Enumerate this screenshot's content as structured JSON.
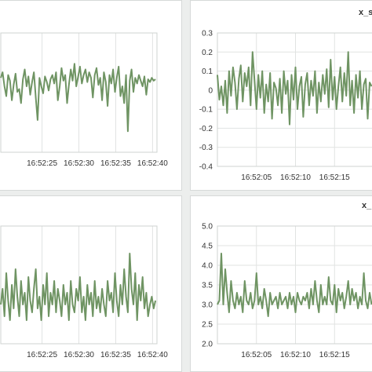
{
  "accent_color": "#6f9463",
  "panels": [
    {
      "title": "",
      "plot": {
        "left": 8,
        "top": 41,
        "width": 199,
        "height": 152
      }
    },
    {
      "title": "x_s",
      "plot": {
        "left": 34,
        "top": 41,
        "width": 199,
        "height": 170
      }
    },
    {
      "title": "",
      "plot": {
        "left": 8,
        "top": 38,
        "width": 199,
        "height": 150
      }
    },
    {
      "title": "x_",
      "plot": {
        "left": 34,
        "top": 38,
        "width": 199,
        "height": 150
      }
    }
  ],
  "chart_data": [
    {
      "type": "line",
      "x_ticks": [
        "16:52:25",
        "16:52:30",
        "16:52:35",
        "16:52:40"
      ],
      "x_tick_positions": [
        25,
        30,
        35,
        40
      ],
      "xlim": [
        19.4,
        40.6
      ],
      "ylim": [
        -0.45,
        0.4
      ],
      "y_ticks": [],
      "grid": true,
      "series": [
        {
          "x_start": 19.4,
          "x_step": 0.25,
          "values": [
            0.08,
            0.12,
            0.02,
            -0.05,
            0.1,
            0.06,
            -0.08,
            0.03,
            0.11,
            -0.02,
            0.0,
            -0.1,
            0.07,
            0.14,
            0.02,
            0.09,
            -0.04,
            0.05,
            0.12,
            -0.06,
            -0.22,
            0.08,
            0.02,
            -0.03,
            0.09,
            0.05,
            -0.01,
            0.07,
            0.1,
            0.04,
            0.12,
            -0.08,
            0.02,
            0.15,
            0.06,
            0.1,
            -0.1,
            0.03,
            0.14,
            0.06,
            0.18,
            0.02,
            0.09,
            0.16,
            0.04,
            0.1,
            0.14,
            0.05,
            0.12,
            0.08,
            -0.06,
            0.1,
            0.15,
            0.03,
            0.08,
            -0.08,
            0.12,
            0.05,
            -0.12,
            0.1,
            0.04,
            0.14,
            -0.02,
            0.08,
            0.16,
            -0.05,
            0.02,
            -0.1,
            0.1,
            -0.3,
            0.06,
            0.14,
            -0.02,
            0.08,
            0.04,
            0.1,
            0.06,
            0.02,
            0.09,
            -0.04,
            0.07,
            0.05,
            0.08,
            0.06,
            0.07
          ]
        }
      ]
    },
    {
      "type": "line",
      "x_ticks": [
        "16:52:05",
        "16:52:10",
        "16:52:15"
      ],
      "x_tick_positions": [
        5,
        10,
        15
      ],
      "xlim": [
        0.0,
        20.0
      ],
      "ylim": [
        -0.4,
        0.3
      ],
      "y_ticks": [
        -0.4,
        -0.3,
        -0.2,
        -0.1,
        0,
        0.1,
        0.2,
        0.3
      ],
      "y_tick_labels": [
        "-0.4",
        "-0.3",
        "-0.2",
        "-0.1",
        "0",
        "0.1",
        "0.2",
        "0.3"
      ],
      "grid": true,
      "series": [
        {
          "x_start": 0.0,
          "x_step": 0.25,
          "values": [
            0.08,
            -0.05,
            0.02,
            -0.08,
            0.05,
            -0.12,
            0.1,
            -0.03,
            0.12,
            0.04,
            -0.1,
            0.06,
            0.13,
            -0.06,
            0.09,
            0.02,
            0.12,
            -0.08,
            0.2,
            0.05,
            -0.1,
            0.08,
            -0.04,
            0.1,
            -0.12,
            0.03,
            -0.06,
            0.09,
            -0.15,
            0.04,
            0.01,
            -0.08,
            0.06,
            -0.12,
            0.1,
            -0.02,
            0.05,
            -0.18,
            0.08,
            -0.05,
            0.12,
            -0.1,
            0.02,
            0.07,
            -0.14,
            0.03,
            0.09,
            -0.08,
            0.05,
            -0.03,
            0.1,
            -0.12,
            0.04,
            -0.06,
            0.08,
            -0.02,
            0.11,
            -0.09,
            0.16,
            -0.05,
            0.07,
            -0.1,
            0.02,
            0.12,
            -0.06,
            0.09,
            -0.03,
            0.2,
            -0.08,
            0.05,
            -0.12,
            0.08,
            -0.04,
            0.1,
            -0.1,
            0.03,
            0.06,
            -0.15,
            0.04,
            0.02
          ]
        }
      ]
    },
    {
      "type": "line",
      "x_ticks": [
        "16:52:25",
        "16:52:30",
        "16:52:35",
        "16:52:40"
      ],
      "x_tick_positions": [
        25,
        30,
        35,
        40
      ],
      "xlim": [
        19.4,
        40.6
      ],
      "ylim": [
        2.0,
        5.0
      ],
      "y_ticks": [],
      "grid": true,
      "series": [
        {
          "x_start": 19.4,
          "x_step": 0.25,
          "values": [
            3.0,
            3.4,
            2.7,
            3.8,
            3.1,
            2.6,
            3.5,
            2.9,
            3.9,
            3.2,
            2.7,
            3.6,
            3.0,
            3.3,
            2.6,
            3.7,
            3.1,
            2.8,
            3.4,
            3.9,
            2.9,
            3.2,
            2.6,
            3.5,
            3.0,
            3.8,
            2.7,
            3.3,
            3.0,
            3.6,
            2.8,
            3.4,
            3.1,
            2.7,
            3.5,
            3.0,
            3.3,
            2.6,
            3.6,
            3.0,
            2.8,
            3.4,
            3.1,
            3.7,
            2.8,
            3.2,
            2.6,
            3.5,
            3.0,
            3.3,
            2.7,
            3.6,
            2.9,
            3.2,
            2.8,
            3.4,
            3.0,
            2.7,
            3.6,
            3.1,
            3.3,
            2.8,
            3.8,
            3.1,
            2.7,
            3.5,
            3.0,
            3.9,
            3.2,
            2.8,
            4.3,
            3.4,
            3.0,
            3.8,
            2.6,
            3.5,
            3.1,
            3.7,
            2.9,
            3.3,
            2.7,
            3.0,
            3.2,
            2.9,
            3.1
          ]
        }
      ]
    },
    {
      "type": "line",
      "x_ticks": [
        "16:52:05",
        "16:52:10",
        "16:52:15"
      ],
      "x_tick_positions": [
        5,
        10,
        15
      ],
      "xlim": [
        0.0,
        20.0
      ],
      "ylim": [
        2.0,
        5.0
      ],
      "y_ticks": [
        2.0,
        2.5,
        3.0,
        3.5,
        4.0,
        4.5,
        5.0
      ],
      "y_tick_labels": [
        "2.0",
        "2.5",
        "3.0",
        "3.5",
        "4.0",
        "4.5",
        "5.0"
      ],
      "grid": true,
      "series": [
        {
          "x_start": 0.0,
          "x_step": 0.25,
          "values": [
            3.0,
            3.1,
            4.3,
            3.0,
            3.9,
            3.3,
            2.8,
            3.6,
            3.1,
            2.9,
            3.3,
            3.0,
            3.2,
            2.8,
            3.6,
            3.1,
            3.0,
            3.3,
            2.9,
            3.1,
            3.8,
            3.0,
            3.2,
            2.9,
            3.4,
            3.1,
            2.7,
            3.3,
            3.0,
            3.1,
            3.2,
            2.9,
            3.3,
            3.0,
            3.1,
            3.2,
            2.9,
            3.3,
            3.0,
            3.2,
            2.8,
            3.3,
            3.1,
            3.0,
            3.2,
            3.1,
            3.3,
            2.9,
            3.4,
            3.0,
            3.6,
            3.1,
            2.8,
            3.5,
            3.0,
            3.2,
            3.0,
            3.7,
            3.1,
            3.0,
            3.5,
            2.8,
            3.4,
            3.1,
            3.3,
            2.9,
            3.2,
            3.6,
            3.0,
            3.4,
            3.1,
            3.3,
            2.9,
            3.2,
            3.0,
            3.8,
            3.1,
            2.9,
            3.3,
            3.0
          ]
        }
      ]
    }
  ]
}
